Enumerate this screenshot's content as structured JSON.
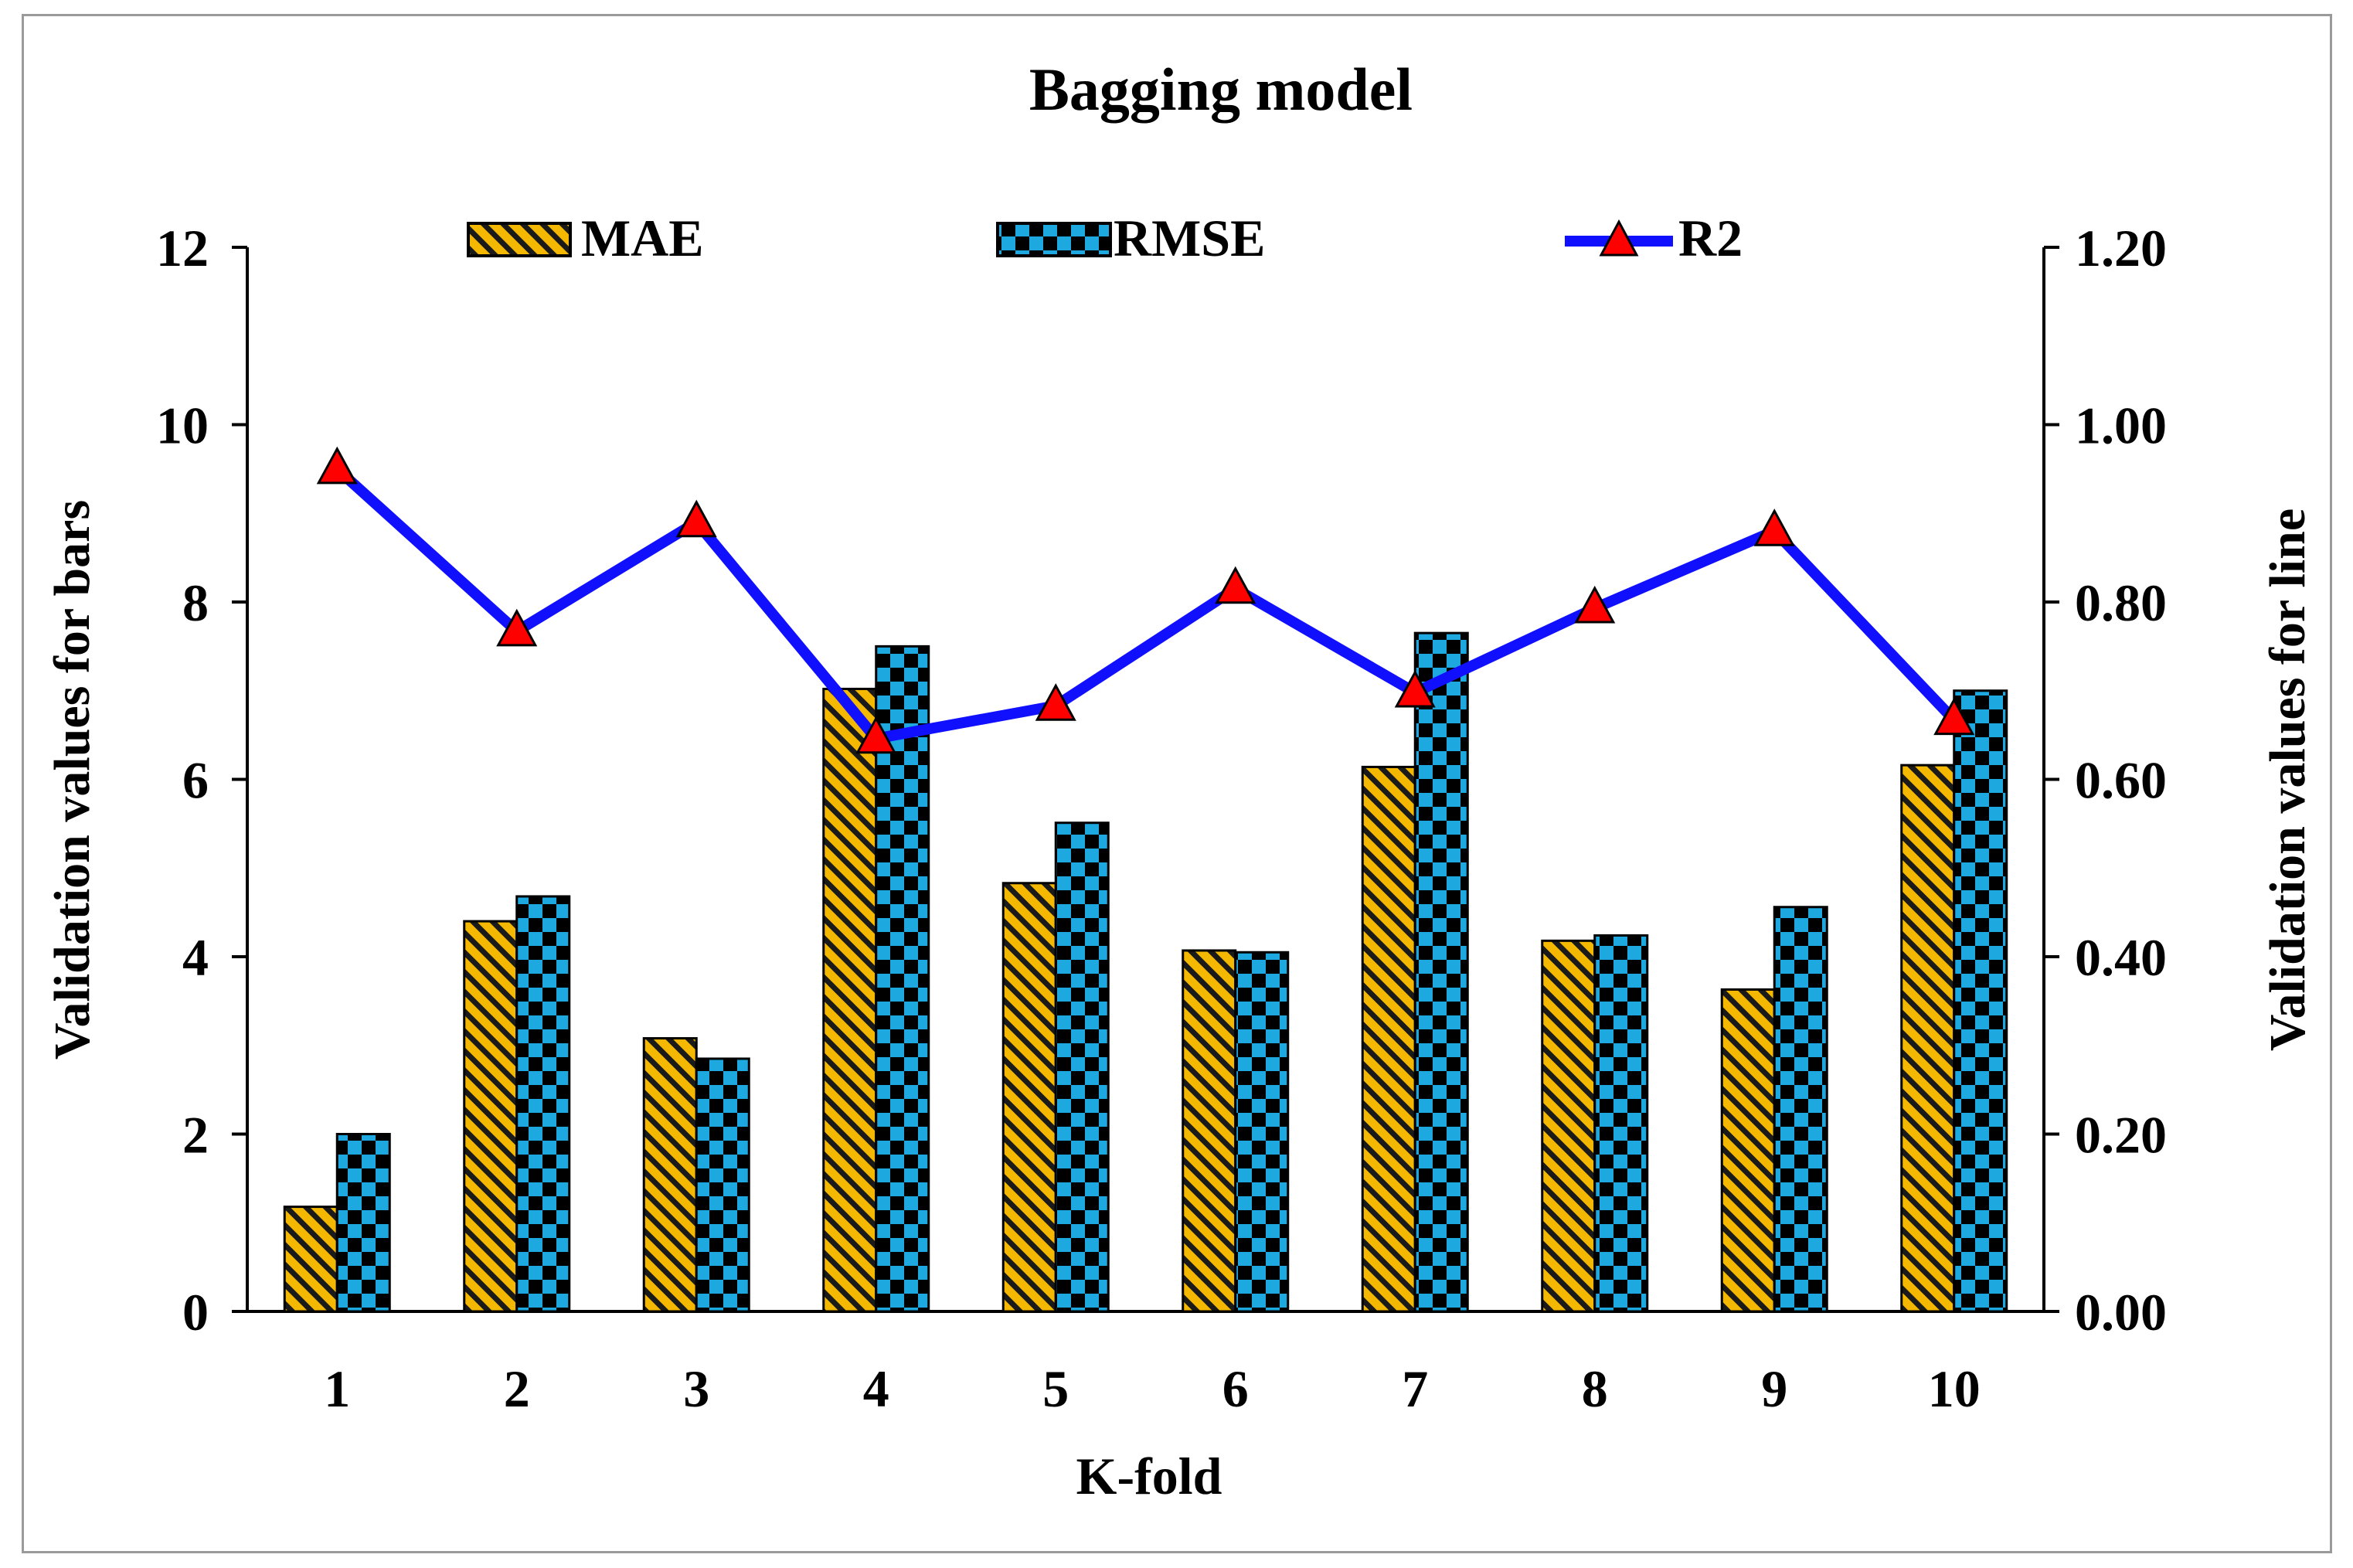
{
  "chart_data": {
    "type": "bar",
    "title": "Bagging model",
    "categories": [
      "1",
      "2",
      "3",
      "4",
      "5",
      "6",
      "7",
      "8",
      "9",
      "10"
    ],
    "xlabel": "K-fold",
    "ylabel": "Validation values for bars",
    "y2label": "Validation values for line",
    "ylim": [
      0,
      12
    ],
    "y2lim": [
      0,
      1.2
    ],
    "yticks": [
      "0",
      "2",
      "4",
      "6",
      "8",
      "10",
      "12"
    ],
    "y2ticks": [
      "0.00",
      "0.20",
      "0.40",
      "0.60",
      "0.80",
      "1.00",
      "1.20"
    ],
    "series": [
      {
        "name": "MAE",
        "kind": "bar",
        "axis": "left",
        "values": [
          1.18,
          4.4,
          3.08,
          7.02,
          4.83,
          4.07,
          6.14,
          4.18,
          3.63,
          6.16
        ]
      },
      {
        "name": "RMSE",
        "kind": "bar",
        "axis": "left",
        "values": [
          2.0,
          4.68,
          2.85,
          7.5,
          5.51,
          4.05,
          7.65,
          4.24,
          4.56,
          7.0
        ]
      },
      {
        "name": "R2",
        "kind": "line",
        "axis": "right",
        "values": [
          0.95,
          0.767,
          0.89,
          0.646,
          0.683,
          0.815,
          0.698,
          0.793,
          0.88,
          0.667
        ]
      }
    ],
    "legend": [
      "MAE",
      "RMSE",
      "R2"
    ],
    "legend_position": "top-center",
    "grid": false,
    "colors": {
      "mae": "#f5b800",
      "rmse": "#1ea8e0",
      "r2_line": "#1010ff",
      "r2_marker": "#ff0000"
    }
  }
}
